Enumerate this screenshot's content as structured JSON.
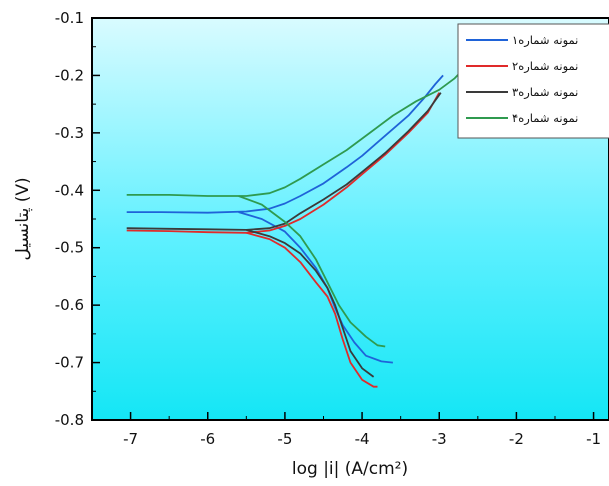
{
  "chart_data": {
    "type": "line",
    "xlabel": "log |i| (A/cm²)",
    "ylabel": "پتانسیل (V)",
    "xlim": [
      -7.5,
      -0.8
    ],
    "ylim": [
      -0.8,
      -0.1
    ],
    "x_ticks": [
      -7,
      -6,
      -5,
      -4,
      -3,
      -2,
      -1
    ],
    "y_ticks": [
      -0.1,
      -0.2,
      -0.3,
      -0.4,
      -0.5,
      -0.6,
      -0.7,
      -0.8
    ],
    "x_tick_labels": [
      "-7",
      "-6",
      "-5",
      "-4",
      "-3",
      "-2",
      "-1"
    ],
    "y_tick_labels": [
      "-0.1",
      "-0.2",
      "-0.3",
      "-0.4",
      "-0.5",
      "-0.6",
      "-0.7",
      "-0.8"
    ],
    "grid": false,
    "legend_position": "top-right",
    "background": "cyan-gradient",
    "series": [
      {
        "name": "نمونه شماره۱",
        "color": "#1f63d8",
        "anodic": [
          [
            -7.05,
            -0.438
          ],
          [
            -6.6,
            -0.438
          ],
          [
            -6.0,
            -0.439
          ],
          [
            -5.5,
            -0.437
          ],
          [
            -5.2,
            -0.432
          ],
          [
            -5.0,
            -0.423
          ],
          [
            -4.8,
            -0.41
          ],
          [
            -4.5,
            -0.388
          ],
          [
            -4.2,
            -0.36
          ],
          [
            -4.0,
            -0.34
          ],
          [
            -3.7,
            -0.305
          ],
          [
            -3.4,
            -0.27
          ],
          [
            -3.2,
            -0.24
          ],
          [
            -3.05,
            -0.215
          ],
          [
            -2.95,
            -0.2
          ]
        ],
        "cathodic": [
          [
            -5.6,
            -0.438
          ],
          [
            -5.3,
            -0.45
          ],
          [
            -5.0,
            -0.472
          ],
          [
            -4.8,
            -0.5
          ],
          [
            -4.6,
            -0.535
          ],
          [
            -4.45,
            -0.57
          ],
          [
            -4.35,
            -0.605
          ],
          [
            -4.25,
            -0.635
          ],
          [
            -4.1,
            -0.665
          ],
          [
            -3.95,
            -0.688
          ],
          [
            -3.75,
            -0.698
          ],
          [
            -3.6,
            -0.7
          ]
        ]
      },
      {
        "name": "نمونه شماره۲",
        "color": "#e02a2a",
        "anodic": [
          [
            -7.05,
            -0.47
          ],
          [
            -6.5,
            -0.471
          ],
          [
            -6.0,
            -0.473
          ],
          [
            -5.5,
            -0.474
          ],
          [
            -5.2,
            -0.47
          ],
          [
            -5.0,
            -0.462
          ],
          [
            -4.8,
            -0.45
          ],
          [
            -4.5,
            -0.425
          ],
          [
            -4.2,
            -0.395
          ],
          [
            -4.0,
            -0.372
          ],
          [
            -3.7,
            -0.338
          ],
          [
            -3.4,
            -0.3
          ],
          [
            -3.15,
            -0.265
          ],
          [
            -3.0,
            -0.23
          ]
        ],
        "cathodic": [
          [
            -5.5,
            -0.474
          ],
          [
            -5.2,
            -0.485
          ],
          [
            -5.0,
            -0.5
          ],
          [
            -4.8,
            -0.525
          ],
          [
            -4.6,
            -0.56
          ],
          [
            -4.45,
            -0.585
          ],
          [
            -4.35,
            -0.615
          ],
          [
            -4.25,
            -0.66
          ],
          [
            -4.15,
            -0.7
          ],
          [
            -4.0,
            -0.73
          ],
          [
            -3.85,
            -0.742
          ],
          [
            -3.8,
            -0.742
          ]
        ]
      },
      {
        "name": "نمونه شماره۳",
        "color": "#3a3a3a",
        "anodic": [
          [
            -7.05,
            -0.466
          ],
          [
            -6.5,
            -0.467
          ],
          [
            -6.0,
            -0.468
          ],
          [
            -5.5,
            -0.469
          ],
          [
            -5.2,
            -0.466
          ],
          [
            -5.0,
            -0.458
          ],
          [
            -4.8,
            -0.44
          ],
          [
            -4.5,
            -0.416
          ],
          [
            -4.2,
            -0.39
          ],
          [
            -4.0,
            -0.368
          ],
          [
            -3.7,
            -0.335
          ],
          [
            -3.4,
            -0.297
          ],
          [
            -3.15,
            -0.262
          ],
          [
            -2.98,
            -0.23
          ]
        ],
        "cathodic": [
          [
            -5.5,
            -0.469
          ],
          [
            -5.2,
            -0.48
          ],
          [
            -5.0,
            -0.492
          ],
          [
            -4.8,
            -0.51
          ],
          [
            -4.6,
            -0.54
          ],
          [
            -4.45,
            -0.57
          ],
          [
            -4.35,
            -0.6
          ],
          [
            -4.25,
            -0.64
          ],
          [
            -4.15,
            -0.68
          ],
          [
            -4.0,
            -0.71
          ],
          [
            -3.85,
            -0.725
          ]
        ]
      },
      {
        "name": "نمونه شماره۴",
        "color": "#2f9a4f",
        "anodic": [
          [
            -7.05,
            -0.408
          ],
          [
            -6.5,
            -0.408
          ],
          [
            -6.0,
            -0.41
          ],
          [
            -5.5,
            -0.41
          ],
          [
            -5.2,
            -0.405
          ],
          [
            -5.0,
            -0.395
          ],
          [
            -4.8,
            -0.38
          ],
          [
            -4.5,
            -0.355
          ],
          [
            -4.2,
            -0.33
          ],
          [
            -3.9,
            -0.3
          ],
          [
            -3.6,
            -0.27
          ],
          [
            -3.3,
            -0.245
          ],
          [
            -3.0,
            -0.225
          ],
          [
            -2.8,
            -0.205
          ],
          [
            -2.55,
            -0.17
          ]
        ],
        "cathodic": [
          [
            -5.6,
            -0.41
          ],
          [
            -5.3,
            -0.425
          ],
          [
            -5.0,
            -0.455
          ],
          [
            -4.8,
            -0.48
          ],
          [
            -4.6,
            -0.52
          ],
          [
            -4.45,
            -0.56
          ],
          [
            -4.3,
            -0.6
          ],
          [
            -4.15,
            -0.63
          ],
          [
            -3.95,
            -0.655
          ],
          [
            -3.8,
            -0.67
          ],
          [
            -3.7,
            -0.672
          ]
        ]
      }
    ]
  }
}
